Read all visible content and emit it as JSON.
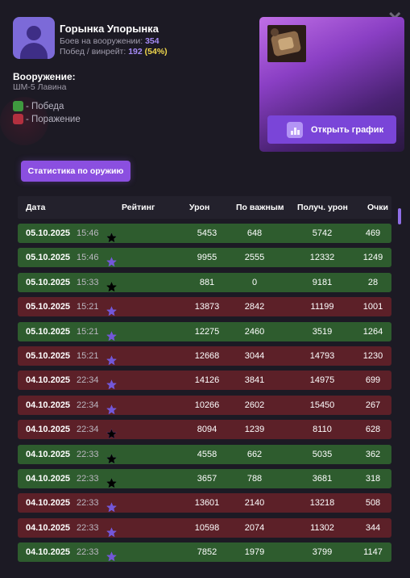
{
  "colors": {
    "win": "#2e5c2e",
    "loss": "#5c2028",
    "accent": "#8b4fe0",
    "star_purple": "#7357d8",
    "star_gray": "#6e6e85",
    "star_black": "#000000"
  },
  "profile": {
    "name": "Горынка Упорынка",
    "battles_label": "Боев на вооружении:",
    "battles_value": "354",
    "wins_label": "Побед / винрейт:",
    "wins_value": "192",
    "winrate": "(54%)"
  },
  "weapon": {
    "title": "Вооружение:",
    "name": "ШМ-5 Лавина"
  },
  "legend": {
    "win": "- Победа",
    "loss": "- Поражение"
  },
  "buttons": {
    "open_chart": "Открыть график",
    "weapon_stats": "Статистика по оружию",
    "close_icon": "close-icon",
    "chart_icon": "bar-chart-icon"
  },
  "table": {
    "headers": {
      "date": "Дата",
      "rating": "Рейтинг",
      "damage": "Урон",
      "important": "По важным",
      "received": "Получ. урон",
      "points": "Очки"
    },
    "rows": [
      {
        "result": "win",
        "date": "05.10.2025",
        "time": "15:46",
        "stars": [
          "p",
          "p",
          "g",
          "k",
          "k"
        ],
        "damage": "5453",
        "important": "648",
        "received": "5742",
        "points": "469"
      },
      {
        "result": "win",
        "date": "05.10.2025",
        "time": "15:46",
        "stars": [
          "g",
          "p",
          "p",
          "p",
          "p"
        ],
        "damage": "9955",
        "important": "2555",
        "received": "12332",
        "points": "1249"
      },
      {
        "result": "win",
        "date": "05.10.2025",
        "time": "15:33",
        "stars": [
          "k",
          "k",
          "k",
          "k",
          "k"
        ],
        "damage": "881",
        "important": "0",
        "received": "9181",
        "points": "28"
      },
      {
        "result": "loss",
        "date": "05.10.2025",
        "time": "15:21",
        "stars": [
          "g",
          "p",
          "p",
          "p",
          "p"
        ],
        "damage": "13873",
        "important": "2842",
        "received": "11199",
        "points": "1001"
      },
      {
        "result": "win",
        "date": "05.10.2025",
        "time": "15:21",
        "stars": [
          "g",
          "p",
          "p",
          "p",
          "p"
        ],
        "damage": "12275",
        "important": "2460",
        "received": "3519",
        "points": "1264"
      },
      {
        "result": "loss",
        "date": "05.10.2025",
        "time": "15:21",
        "stars": [
          "g",
          "p",
          "p",
          "p",
          "p"
        ],
        "damage": "12668",
        "important": "3044",
        "received": "14793",
        "points": "1230"
      },
      {
        "result": "loss",
        "date": "04.10.2025",
        "time": "22:34",
        "stars": [
          "g",
          "p",
          "p",
          "p",
          "p"
        ],
        "damage": "14126",
        "important": "3841",
        "received": "14975",
        "points": "699"
      },
      {
        "result": "loss",
        "date": "04.10.2025",
        "time": "22:34",
        "stars": [
          "g",
          "p",
          "p",
          "p",
          "p"
        ],
        "damage": "10266",
        "important": "2602",
        "received": "15450",
        "points": "267"
      },
      {
        "result": "loss",
        "date": "04.10.2025",
        "time": "22:34",
        "stars": [
          "g",
          "p",
          "p",
          "p",
          "k"
        ],
        "damage": "8094",
        "important": "1239",
        "received": "8110",
        "points": "628"
      },
      {
        "result": "win",
        "date": "04.10.2025",
        "time": "22:33",
        "stars": [
          "g",
          "p",
          "p",
          "k",
          "k"
        ],
        "damage": "4558",
        "important": "662",
        "received": "5035",
        "points": "362"
      },
      {
        "result": "win",
        "date": "04.10.2025",
        "time": "22:33",
        "stars": [
          "g",
          "p",
          "k",
          "k",
          "k"
        ],
        "damage": "3657",
        "important": "788",
        "received": "3681",
        "points": "318"
      },
      {
        "result": "loss",
        "date": "04.10.2025",
        "time": "22:33",
        "stars": [
          "g",
          "p",
          "p",
          "p",
          "p"
        ],
        "damage": "13601",
        "important": "2140",
        "received": "13218",
        "points": "508"
      },
      {
        "result": "loss",
        "date": "04.10.2025",
        "time": "22:33",
        "stars": [
          "g",
          "p",
          "p",
          "p",
          "p"
        ],
        "damage": "10598",
        "important": "2074",
        "received": "11302",
        "points": "344"
      },
      {
        "result": "win",
        "date": "04.10.2025",
        "time": "22:33",
        "stars": [
          "g",
          "p",
          "p",
          "p",
          "p"
        ],
        "damage": "7852",
        "important": "1979",
        "received": "3799",
        "points": "1147"
      }
    ]
  }
}
